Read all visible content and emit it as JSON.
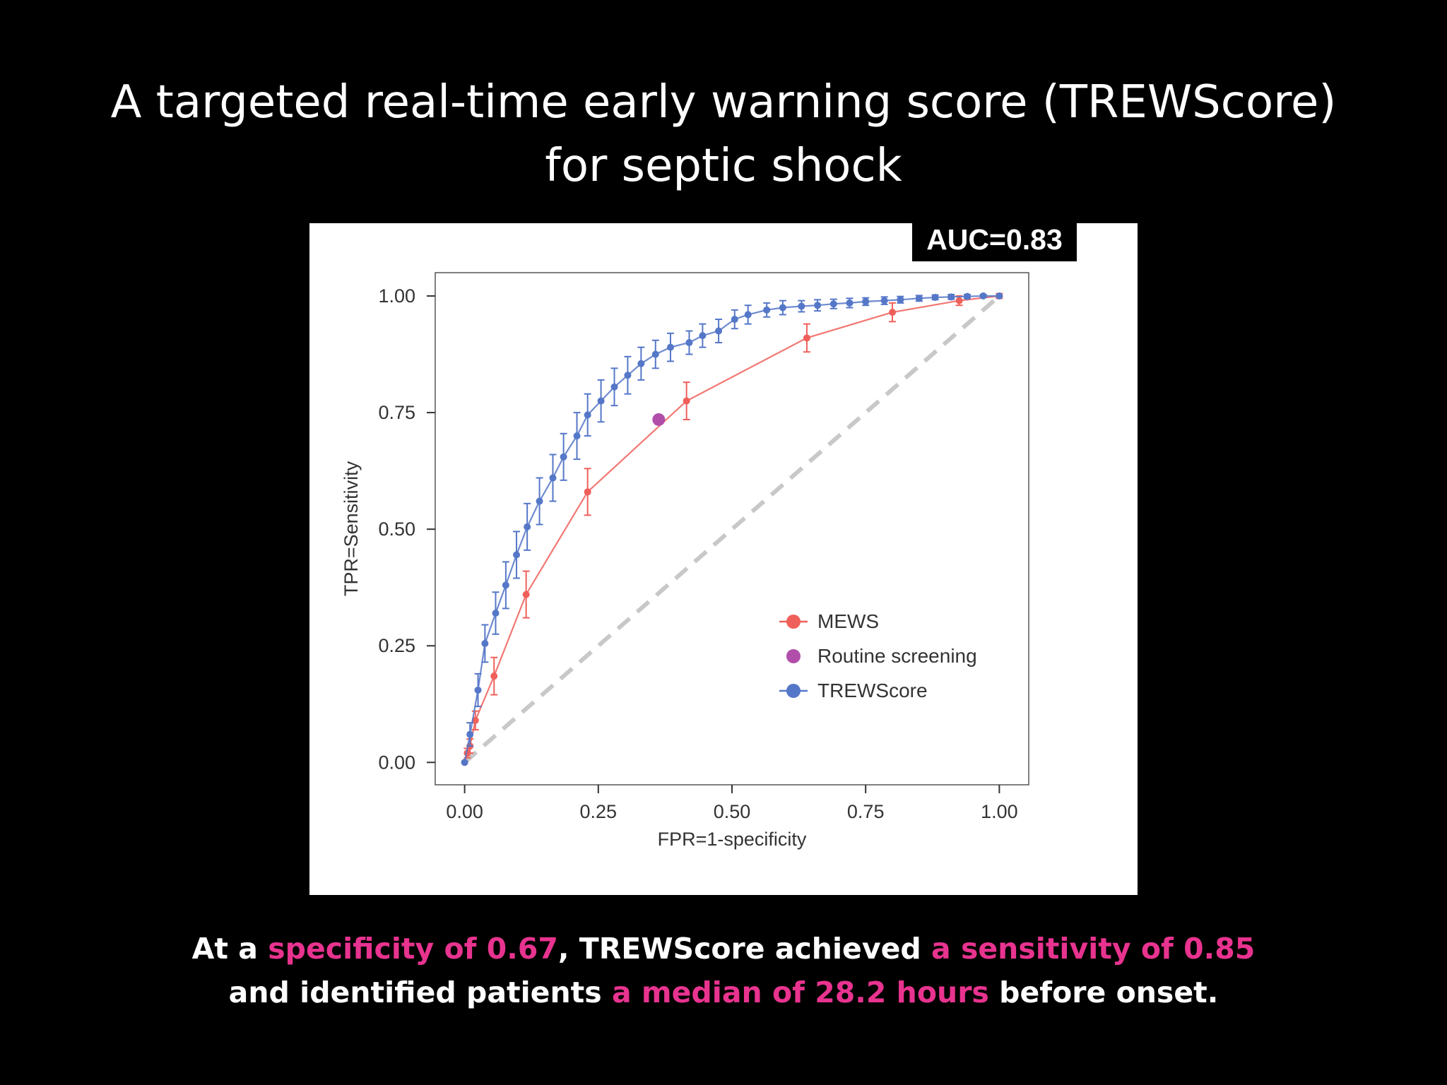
{
  "slide": {
    "title_line1": "A targeted real-time early warning score (TREWScore)",
    "title_line2": "for septic shock",
    "auc_badge": "AUC=0.83",
    "caption": {
      "line1": [
        {
          "text": "At a ",
          "highlight": false
        },
        {
          "text": "specificity of 0.67",
          "highlight": true
        },
        {
          "text": ", TREWScore achieved ",
          "highlight": false
        },
        {
          "text": "a sensitivity of 0.85",
          "highlight": true
        }
      ],
      "line2": [
        {
          "text": "and identified patients ",
          "highlight": false
        },
        {
          "text": "a median of 28.2 hours",
          "highlight": true
        },
        {
          "text": " before onset.",
          "highlight": false
        }
      ]
    },
    "highlight_color": "#e8338f"
  },
  "chart_data": {
    "type": "line",
    "xlabel": "FPR=1-specificity",
    "ylabel": "TPR=Sensitivity",
    "xlim": [
      -0.055,
      1.055
    ],
    "ylim": [
      -0.048,
      1.05
    ],
    "xticks": [
      0,
      0.25,
      0.5,
      0.75,
      1
    ],
    "xtick_labels": [
      "0.00",
      "0.25",
      "0.50",
      "0.75",
      "1.00"
    ],
    "yticks": [
      0,
      0.25,
      0.5,
      0.75,
      1
    ],
    "ytick_labels": [
      "0.00",
      "0.25",
      "0.50",
      "0.75",
      "1.00"
    ],
    "grid": false,
    "legend_position": "bottom-right",
    "diagonal_reference": true,
    "series": [
      {
        "name": "MEWS",
        "color": "#f0605a",
        "marker": "point",
        "points": [
          {
            "x": 0.0,
            "y": 0.0,
            "err": 0.0
          },
          {
            "x": 0.005,
            "y": 0.02,
            "err": 0.01
          },
          {
            "x": 0.01,
            "y": 0.035,
            "err": 0.015
          },
          {
            "x": 0.02,
            "y": 0.09,
            "err": 0.02
          },
          {
            "x": 0.055,
            "y": 0.185,
            "err": 0.04
          },
          {
            "x": 0.115,
            "y": 0.36,
            "err": 0.05
          },
          {
            "x": 0.23,
            "y": 0.58,
            "err": 0.05
          },
          {
            "x": 0.415,
            "y": 0.775,
            "err": 0.04
          },
          {
            "x": 0.64,
            "y": 0.91,
            "err": 0.03
          },
          {
            "x": 0.8,
            "y": 0.965,
            "err": 0.02
          },
          {
            "x": 0.925,
            "y": 0.99,
            "err": 0.01
          },
          {
            "x": 1.0,
            "y": 1.0,
            "err": 0.005
          }
        ]
      },
      {
        "name": "Routine screening",
        "color": "#b04eaa",
        "marker": "large-point",
        "points": [
          {
            "x": 0.363,
            "y": 0.735,
            "err": 0
          }
        ]
      },
      {
        "name": "TREWScore",
        "color": "#5577c8",
        "marker": "point",
        "points": [
          {
            "x": 0.0,
            "y": 0.0,
            "err": 0.0
          },
          {
            "x": 0.01,
            "y": 0.06,
            "err": 0.025
          },
          {
            "x": 0.025,
            "y": 0.155,
            "err": 0.035
          },
          {
            "x": 0.038,
            "y": 0.255,
            "err": 0.04
          },
          {
            "x": 0.058,
            "y": 0.32,
            "err": 0.045
          },
          {
            "x": 0.077,
            "y": 0.38,
            "err": 0.05
          },
          {
            "x": 0.097,
            "y": 0.445,
            "err": 0.05
          },
          {
            "x": 0.117,
            "y": 0.505,
            "err": 0.05
          },
          {
            "x": 0.14,
            "y": 0.56,
            "err": 0.05
          },
          {
            "x": 0.165,
            "y": 0.61,
            "err": 0.05
          },
          {
            "x": 0.185,
            "y": 0.655,
            "err": 0.05
          },
          {
            "x": 0.21,
            "y": 0.7,
            "err": 0.05
          },
          {
            "x": 0.23,
            "y": 0.745,
            "err": 0.045
          },
          {
            "x": 0.255,
            "y": 0.775,
            "err": 0.045
          },
          {
            "x": 0.28,
            "y": 0.805,
            "err": 0.04
          },
          {
            "x": 0.305,
            "y": 0.83,
            "err": 0.04
          },
          {
            "x": 0.33,
            "y": 0.855,
            "err": 0.035
          },
          {
            "x": 0.357,
            "y": 0.875,
            "err": 0.03
          },
          {
            "x": 0.385,
            "y": 0.89,
            "err": 0.03
          },
          {
            "x": 0.42,
            "y": 0.9,
            "err": 0.025
          },
          {
            "x": 0.445,
            "y": 0.915,
            "err": 0.025
          },
          {
            "x": 0.475,
            "y": 0.925,
            "err": 0.025
          },
          {
            "x": 0.505,
            "y": 0.95,
            "err": 0.02
          },
          {
            "x": 0.53,
            "y": 0.96,
            "err": 0.02
          },
          {
            "x": 0.565,
            "y": 0.97,
            "err": 0.015
          },
          {
            "x": 0.595,
            "y": 0.975,
            "err": 0.015
          },
          {
            "x": 0.63,
            "y": 0.978,
            "err": 0.012
          },
          {
            "x": 0.66,
            "y": 0.98,
            "err": 0.012
          },
          {
            "x": 0.69,
            "y": 0.983,
            "err": 0.01
          },
          {
            "x": 0.72,
            "y": 0.985,
            "err": 0.01
          },
          {
            "x": 0.75,
            "y": 0.988,
            "err": 0.008
          },
          {
            "x": 0.785,
            "y": 0.99,
            "err": 0.008
          },
          {
            "x": 0.815,
            "y": 0.992,
            "err": 0.007
          },
          {
            "x": 0.85,
            "y": 0.995,
            "err": 0.006
          },
          {
            "x": 0.88,
            "y": 0.997,
            "err": 0.005
          },
          {
            "x": 0.91,
            "y": 0.998,
            "err": 0.005
          },
          {
            "x": 0.94,
            "y": 0.999,
            "err": 0.004
          },
          {
            "x": 0.97,
            "y": 1.0,
            "err": 0.003
          },
          {
            "x": 1.0,
            "y": 1.0,
            "err": 0.0
          }
        ]
      }
    ]
  }
}
